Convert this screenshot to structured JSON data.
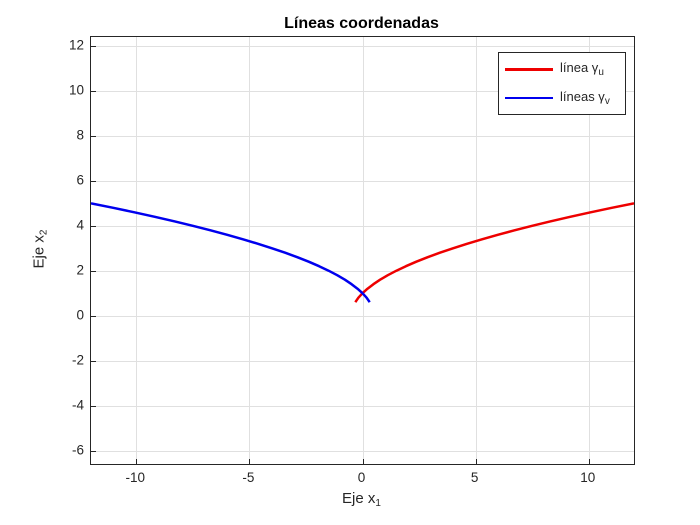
{
  "figure": {
    "background": "#ffffff",
    "axis_color": "#262626",
    "grid_color": "#e0e0e0",
    "tick_label_color": "#262626"
  },
  "chart_data": {
    "type": "line",
    "title": "Líneas coordenadas",
    "xlabel": {
      "text": "Eje x",
      "sub": "1"
    },
    "ylabel": {
      "text": "Eje x",
      "sub": "2"
    },
    "xlim": [
      -12,
      12
    ],
    "ylim": [
      -6.6,
      12.4
    ],
    "xticks": [
      -10,
      -5,
      0,
      5,
      10
    ],
    "yticks": [
      -6,
      -4,
      -2,
      0,
      2,
      4,
      6,
      8,
      10,
      12
    ],
    "grid": true,
    "legend": {
      "position": "northeast"
    },
    "series": [
      {
        "name": {
          "text": "línea γ",
          "sub": "u"
        },
        "color": "#ee0000",
        "linewidth": 2.5,
        "points": [
          [
            -0.32,
            0.6
          ],
          [
            -0.18,
            0.8
          ],
          [
            0,
            1
          ],
          [
            0.22,
            1.2
          ],
          [
            0.48,
            1.4
          ],
          [
            0.78,
            1.6
          ],
          [
            1.12,
            1.8
          ],
          [
            1.5,
            2
          ],
          [
            1.92,
            2.2
          ],
          [
            2.38,
            2.4
          ],
          [
            2.88,
            2.6
          ],
          [
            3.42,
            2.8
          ],
          [
            4,
            3
          ],
          [
            4.62,
            3.2
          ],
          [
            5.28,
            3.4
          ],
          [
            5.98,
            3.6
          ],
          [
            6.72,
            3.8
          ],
          [
            7.5,
            4
          ],
          [
            8.32,
            4.2
          ],
          [
            9.18,
            4.4
          ],
          [
            10.08,
            4.6
          ],
          [
            11.02,
            4.8
          ],
          [
            12,
            5
          ]
        ]
      },
      {
        "name": {
          "text": "líneas γ",
          "sub": "v"
        },
        "color": "#0000ee",
        "linewidth": 2.5,
        "points": [
          [
            0.32,
            0.6
          ],
          [
            0.18,
            0.8
          ],
          [
            0,
            1
          ],
          [
            -0.22,
            1.2
          ],
          [
            -0.48,
            1.4
          ],
          [
            -0.78,
            1.6
          ],
          [
            -1.12,
            1.8
          ],
          [
            -1.5,
            2
          ],
          [
            -1.92,
            2.2
          ],
          [
            -2.38,
            2.4
          ],
          [
            -2.88,
            2.6
          ],
          [
            -3.42,
            2.8
          ],
          [
            -4,
            3
          ],
          [
            -4.62,
            3.2
          ],
          [
            -5.28,
            3.4
          ],
          [
            -5.98,
            3.6
          ],
          [
            -6.72,
            3.8
          ],
          [
            -7.5,
            4
          ],
          [
            -8.32,
            4.2
          ],
          [
            -9.18,
            4.4
          ],
          [
            -10.08,
            4.6
          ],
          [
            -11.02,
            4.8
          ],
          [
            -12,
            5
          ]
        ]
      }
    ]
  }
}
